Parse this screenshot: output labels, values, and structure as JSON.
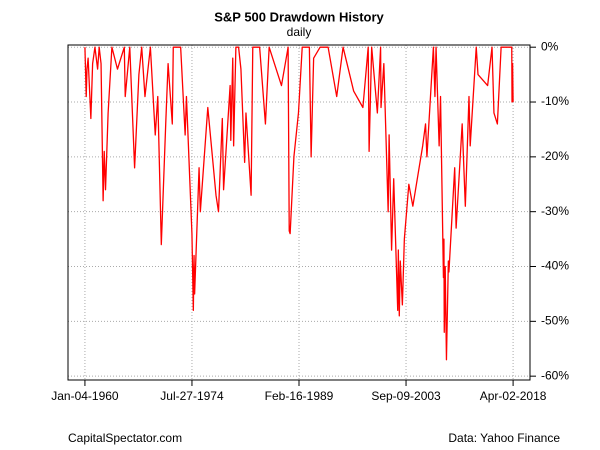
{
  "chart_data": {
    "type": "line",
    "title": "S&P 500 Drawdown History",
    "subtitle": "daily",
    "source_left": "CapitalSpectator.com",
    "source_right": "Data: Yahoo Finance",
    "x": [
      "1960-01-04",
      "1960-03-08",
      "1960-04-15",
      "1960-06-10",
      "1960-10-25",
      "1961-01-20",
      "1961-05-15",
      "1961-09-25",
      "1961-12-12",
      "1962-03-15",
      "1962-06-26",
      "1962-08-20",
      "1962-10-23",
      "1963-03-01",
      "1963-09-05",
      "1964-06-08",
      "1965-05-13",
      "1965-06-28",
      "1966-02-09",
      "1966-10-07",
      "1967-05-08",
      "1967-09-25",
      "1968-03-05",
      "1968-11-29",
      "1969-07-29",
      "1969-12-01",
      "1970-05-26",
      "1970-12-31",
      "1971-04-28",
      "1971-11-23",
      "1972-01-10",
      "1972-12-11",
      "1973-01-11",
      "1973-08-22",
      "1973-10-26",
      "1974-07-26",
      "1974-10-03",
      "1974-11-07",
      "1974-12-06",
      "1975-07-15",
      "1975-09-16",
      "1976-09-21",
      "1977-11-02",
      "1978-03-06",
      "1978-09-12",
      "1978-11-14",
      "1979-10-05",
      "1979-11-07",
      "1980-02-13",
      "1980-03-27",
      "1980-07-17",
      "1980-11-28",
      "1981-03-25",
      "1981-09-25",
      "1981-11-30",
      "1982-08-12",
      "1982-11-03",
      "1983-10-10",
      "1984-07-24",
      "1985-01-25",
      "1986-09-29",
      "1987-08-25",
      "1987-10-19",
      "1987-12-04",
      "1988-06-08",
      "1989-01-20",
      "1989-07-26",
      "1990-07-16",
      "1990-10-11",
      "1991-02-13",
      "1991-12-31",
      "1993-02-02",
      "1994-04-04",
      "1995-02-15",
      "1996-07-24",
      "1997-10-27",
      "1998-07-17",
      "1998-08-31",
      "1999-01-06",
      "1999-10-15",
      "2000-03-24",
      "2000-04-14",
      "2000-09-01",
      "2001-04-04",
      "2001-05-21",
      "2001-09-21",
      "2002-01-04",
      "2002-07-23",
      "2002-08-22",
      "2002-10-09",
      "2002-11-27",
      "2003-03-11",
      "2003-06-17",
      "2004-01-26",
      "2004-08-12",
      "2005-12-14",
      "2006-05-05",
      "2006-07-13",
      "2007-05-30",
      "2007-08-15",
      "2007-10-09",
      "2008-03-10",
      "2008-05-19",
      "2008-10-10",
      "2008-11-04",
      "2008-11-20",
      "2009-01-06",
      "2009-03-09",
      "2009-06-12",
      "2009-07-10",
      "2010-04-23",
      "2010-07-02",
      "2011-04-29",
      "2011-10-03",
      "2012-04-02",
      "2012-06-01",
      "2013-03-28",
      "2013-06-24",
      "2014-10-15",
      "2015-05-21",
      "2015-08-25",
      "2016-02-11",
      "2016-08-15",
      "2018-01-26",
      "2018-02-08",
      "2018-03-09",
      "2018-04-02"
    ],
    "series": [
      {
        "name": "Drawdown",
        "color": "#ff0000",
        "values": [
          0,
          -9,
          -4,
          -2,
          -13,
          -3,
          0,
          -4,
          0,
          -3,
          -28,
          -19,
          -26,
          -12,
          0,
          -4,
          0,
          -9,
          0,
          -22,
          -5,
          0,
          -9,
          0,
          -16,
          -9,
          -36,
          -14,
          -3,
          -14,
          0,
          0,
          0,
          -16,
          -9,
          -34,
          -48,
          -38,
          -45,
          -22,
          -30,
          -11,
          -27,
          -30,
          -13,
          -26,
          -7,
          -17,
          -2,
          -18,
          0,
          0,
          -4,
          -21,
          -12,
          -27,
          0,
          0,
          -14,
          0,
          -7,
          0,
          -33.5,
          -34,
          -20,
          -12,
          0,
          0,
          -20,
          -2,
          0,
          0,
          -9,
          0,
          -8,
          -11,
          0,
          -19,
          0,
          -12,
          0,
          -11,
          -3,
          -30,
          -16,
          -37,
          -24,
          -48,
          -37,
          -49,
          -39,
          -47,
          -35,
          -25,
          -29,
          -18,
          -14,
          -20,
          0,
          -9,
          0,
          -18,
          -9,
          -42,
          -35,
          -52,
          -40,
          -57,
          -39,
          -41,
          -22,
          -33,
          -14,
          -29,
          -9,
          -18,
          0,
          -5,
          -7,
          0,
          -12,
          -14,
          0,
          0,
          -10,
          -3,
          -10
        ]
      }
    ],
    "xlim": [
      "1957-09-15",
      "2020-07-20"
    ],
    "xticks": [
      {
        "value": "1960-01-04",
        "label": "Jan-04-1960"
      },
      {
        "value": "1974-07-27",
        "label": "Jul-27-1974"
      },
      {
        "value": "1989-02-16",
        "label": "Feb-16-1989"
      },
      {
        "value": "2003-09-09",
        "label": "Sep-09-2003"
      },
      {
        "value": "2018-04-02",
        "label": "Apr-02-2018"
      }
    ],
    "ylim": [
      -60.7,
      0.4
    ],
    "yticks": [
      {
        "value": 0,
        "label": "0%"
      },
      {
        "value": -10,
        "label": "-10%"
      },
      {
        "value": -20,
        "label": "-20%"
      },
      {
        "value": -30,
        "label": "-30%"
      },
      {
        "value": -40,
        "label": "-40%"
      },
      {
        "value": -50,
        "label": "-50%"
      },
      {
        "value": -60,
        "label": "-60%"
      }
    ],
    "grid": true
  }
}
